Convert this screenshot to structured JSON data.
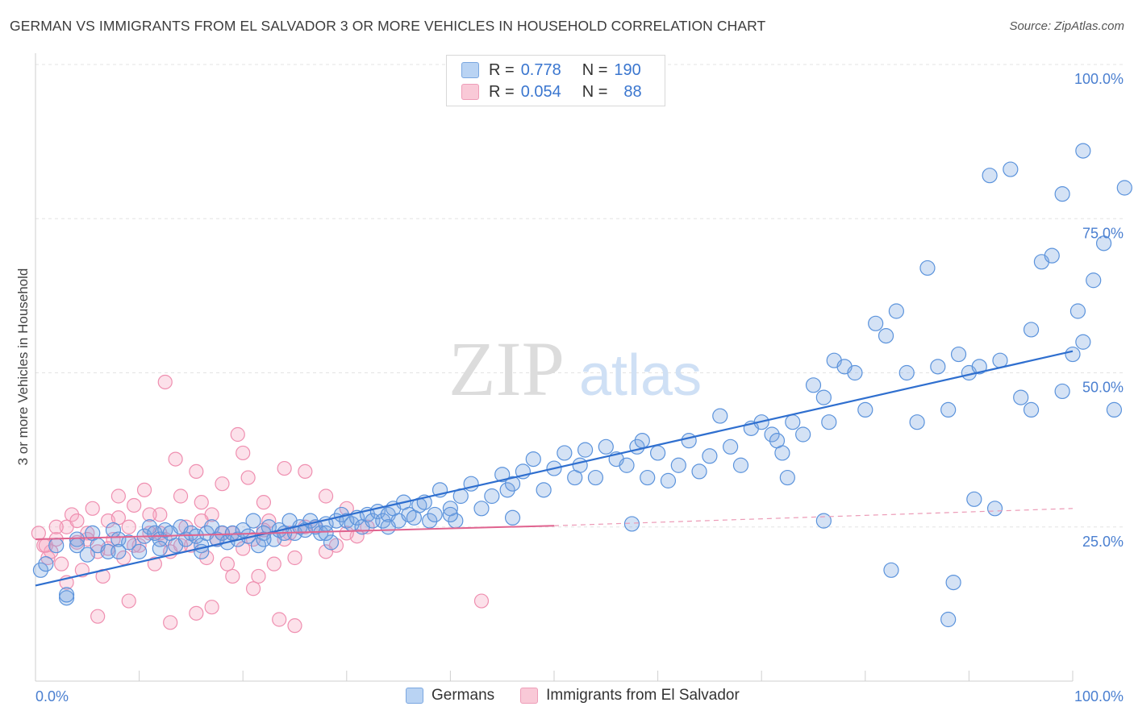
{
  "title": "GERMAN VS IMMIGRANTS FROM EL SALVADOR 3 OR MORE VEHICLES IN HOUSEHOLD CORRELATION CHART",
  "source": "Source: ZipAtlas.com",
  "watermark": {
    "zip": "ZIP",
    "atlas": "atlas"
  },
  "legend": {
    "rows": [
      {
        "r_label": "R =",
        "r_value": "0.778",
        "n_label": "N =",
        "n_value": "190",
        "color": "#a9c8f0"
      },
      {
        "r_label": "R =",
        "r_value": "0.054",
        "n_label": "N =",
        "n_value": "88",
        "color": "#f5b8cb"
      }
    ]
  },
  "bottom_legend": {
    "germans": "Germans",
    "salvador": "Immigrants from El Salvador"
  },
  "chart_data": {
    "type": "scatter",
    "ylabel": "3 or more Vehicles in Household",
    "x_tick_labels": [
      "0.0%",
      "100.0%"
    ],
    "y_tick_labels": [
      "25.0%",
      "50.0%",
      "75.0%",
      "100.0%"
    ],
    "xlim": [
      0,
      100
    ],
    "ylim": [
      0,
      100
    ],
    "grid": true,
    "colors": {
      "germans": "#5b93dc",
      "salvador": "#ef8fb0",
      "german_line": "#2f6fcf",
      "salvador_line": "#e0638f"
    },
    "series": [
      {
        "name": "Germans",
        "trend": {
          "x": [
            0,
            100
          ],
          "y": [
            15.5,
            53.5
          ]
        },
        "points": [
          [
            0.5,
            18
          ],
          [
            1,
            19
          ],
          [
            2,
            22
          ],
          [
            3,
            13.5
          ],
          [
            4,
            23
          ],
          [
            5,
            20.5
          ],
          [
            5.5,
            24
          ],
          [
            6,
            22
          ],
          [
            7,
            21
          ],
          [
            7.5,
            24.5
          ],
          [
            8,
            23
          ],
          [
            9,
            22.5
          ],
          [
            10,
            21
          ],
          [
            10.5,
            23.5
          ],
          [
            11,
            25
          ],
          [
            11.5,
            24
          ],
          [
            12,
            23
          ],
          [
            12.5,
            24.5
          ],
          [
            13,
            24
          ],
          [
            13.5,
            22
          ],
          [
            14,
            25
          ],
          [
            14.5,
            23
          ],
          [
            15,
            24
          ],
          [
            15.5,
            23.5
          ],
          [
            16,
            22
          ],
          [
            16.5,
            24
          ],
          [
            17,
            25
          ],
          [
            17.5,
            23
          ],
          [
            18,
            24
          ],
          [
            18.5,
            22.5
          ],
          [
            19,
            24
          ],
          [
            19.5,
            23
          ],
          [
            20,
            24.5
          ],
          [
            20.5,
            23.5
          ],
          [
            21,
            26
          ],
          [
            21.5,
            22
          ],
          [
            22,
            24
          ],
          [
            22.5,
            25
          ],
          [
            23,
            23
          ],
          [
            23.5,
            24.5
          ],
          [
            24,
            24
          ],
          [
            24.5,
            26
          ],
          [
            25,
            24
          ],
          [
            25.5,
            25
          ],
          [
            26,
            24.5
          ],
          [
            26.5,
            26
          ],
          [
            27,
            25
          ],
          [
            27.5,
            24
          ],
          [
            28,
            25.5
          ],
          [
            28.5,
            22.5
          ],
          [
            29,
            26
          ],
          [
            29.5,
            27
          ],
          [
            30,
            26
          ],
          [
            30.5,
            25.5
          ],
          [
            31,
            26.5
          ],
          [
            31.5,
            25
          ],
          [
            32,
            27
          ],
          [
            32.5,
            26
          ],
          [
            33,
            27.5
          ],
          [
            33.5,
            26
          ],
          [
            34,
            27
          ],
          [
            34.5,
            28
          ],
          [
            35,
            26
          ],
          [
            35.5,
            29
          ],
          [
            36,
            27
          ],
          [
            36.5,
            26.5
          ],
          [
            37,
            28.5
          ],
          [
            37.5,
            29
          ],
          [
            38,
            26
          ],
          [
            38.5,
            27
          ],
          [
            39,
            31
          ],
          [
            40,
            28
          ],
          [
            40.5,
            26
          ],
          [
            41,
            30
          ],
          [
            42,
            32
          ],
          [
            43,
            28
          ],
          [
            44,
            30
          ],
          [
            45,
            33.5
          ],
          [
            45.5,
            31
          ],
          [
            46,
            32
          ],
          [
            47,
            34
          ],
          [
            48,
            36
          ],
          [
            49,
            31
          ],
          [
            50,
            34.5
          ],
          [
            51,
            37
          ],
          [
            52,
            33
          ],
          [
            52.5,
            35
          ],
          [
            53,
            37.5
          ],
          [
            54,
            33
          ],
          [
            55,
            38
          ],
          [
            56,
            36
          ],
          [
            57,
            35
          ],
          [
            58,
            38
          ],
          [
            58.5,
            39
          ],
          [
            59,
            33
          ],
          [
            60,
            37
          ],
          [
            61,
            32.5
          ],
          [
            62,
            35
          ],
          [
            63,
            39
          ],
          [
            64,
            34
          ],
          [
            65,
            36.5
          ],
          [
            66,
            43
          ],
          [
            67,
            38
          ],
          [
            68,
            35
          ],
          [
            69,
            41
          ],
          [
            70,
            42
          ],
          [
            71,
            40
          ],
          [
            71.5,
            39
          ],
          [
            72,
            37
          ],
          [
            73,
            42
          ],
          [
            74,
            40
          ],
          [
            75,
            48
          ],
          [
            76,
            46
          ],
          [
            76.5,
            42
          ],
          [
            77,
            52
          ],
          [
            78,
            51
          ],
          [
            79,
            50
          ],
          [
            80,
            44
          ],
          [
            81,
            58
          ],
          [
            82,
            56
          ],
          [
            83,
            60
          ],
          [
            84,
            50
          ],
          [
            85,
            42
          ],
          [
            86,
            67
          ],
          [
            87,
            51
          ],
          [
            88,
            44
          ],
          [
            89,
            53
          ],
          [
            90,
            50
          ],
          [
            91,
            51
          ],
          [
            92,
            82
          ],
          [
            93,
            52
          ],
          [
            94,
            83
          ],
          [
            95,
            46
          ],
          [
            96,
            57
          ],
          [
            97,
            68
          ],
          [
            98,
            69
          ],
          [
            99,
            47
          ],
          [
            100,
            53
          ],
          [
            100.5,
            60
          ],
          [
            101,
            55
          ],
          [
            102,
            65
          ],
          [
            103,
            71
          ],
          [
            104,
            44
          ],
          [
            105,
            80
          ],
          [
            82.5,
            18
          ],
          [
            88,
            10
          ],
          [
            90.5,
            29.5
          ],
          [
            92.5,
            28
          ],
          [
            72.5,
            33
          ],
          [
            76,
            26
          ],
          [
            57.5,
            25.5
          ],
          [
            46,
            26.5
          ],
          [
            40,
            27
          ],
          [
            34,
            25
          ],
          [
            28,
            24
          ],
          [
            22,
            23
          ],
          [
            16,
            21
          ],
          [
            12,
            21.5
          ],
          [
            8,
            21
          ],
          [
            4,
            22
          ],
          [
            3,
            14
          ],
          [
            88.5,
            16
          ],
          [
            96,
            44
          ],
          [
            99,
            79
          ],
          [
            101,
            86
          ]
        ]
      },
      {
        "name": "Immigrants from El Salvador",
        "trend": {
          "x": [
            0,
            50
          ],
          "y": [
            23,
            25.2
          ]
        },
        "dashed": {
          "x": [
            50,
            100
          ],
          "y": [
            25.2,
            28
          ]
        },
        "points": [
          [
            0.3,
            24
          ],
          [
            0.8,
            22
          ],
          [
            1.2,
            20
          ],
          [
            1.5,
            21
          ],
          [
            2,
            23
          ],
          [
            2.5,
            19
          ],
          [
            3,
            25
          ],
          [
            3.5,
            27
          ],
          [
            4,
            22.5
          ],
          [
            4.5,
            18
          ],
          [
            5,
            24
          ],
          [
            5.5,
            28
          ],
          [
            6,
            21
          ],
          [
            6.5,
            17
          ],
          [
            7,
            26
          ],
          [
            7.5,
            23
          ],
          [
            8,
            30
          ],
          [
            8.5,
            20
          ],
          [
            9,
            25
          ],
          [
            9.5,
            28.5
          ],
          [
            10,
            22
          ],
          [
            10.5,
            31
          ],
          [
            11,
            24
          ],
          [
            11.5,
            19
          ],
          [
            12,
            27
          ],
          [
            12.5,
            23
          ],
          [
            13,
            21
          ],
          [
            13.5,
            36
          ],
          [
            14,
            30
          ],
          [
            14.5,
            25
          ],
          [
            15,
            22
          ],
          [
            15.5,
            34
          ],
          [
            16,
            29
          ],
          [
            16.5,
            20
          ],
          [
            17,
            27
          ],
          [
            17.5,
            23
          ],
          [
            18,
            32
          ],
          [
            18.5,
            19
          ],
          [
            19,
            24
          ],
          [
            19.5,
            40
          ],
          [
            20,
            37
          ],
          [
            20.5,
            33
          ],
          [
            21,
            23
          ],
          [
            21.5,
            17
          ],
          [
            22,
            29
          ],
          [
            22.5,
            26
          ],
          [
            23,
            19
          ],
          [
            23.5,
            10
          ],
          [
            24,
            34.5
          ],
          [
            24.5,
            24
          ],
          [
            25,
            20
          ],
          [
            26,
            34
          ],
          [
            27,
            25
          ],
          [
            28,
            30
          ],
          [
            29,
            22
          ],
          [
            30,
            28
          ],
          [
            31,
            23.5
          ],
          [
            32,
            25
          ],
          [
            12.5,
            48.5
          ],
          [
            15.5,
            11
          ],
          [
            17,
            12
          ],
          [
            19,
            17
          ],
          [
            21,
            15
          ],
          [
            25,
            9
          ],
          [
            13,
            9.5
          ],
          [
            9,
            13
          ],
          [
            6,
            10.5
          ],
          [
            3,
            16
          ],
          [
            43,
            13
          ],
          [
            1,
            22
          ],
          [
            2,
            25
          ],
          [
            4,
            26
          ],
          [
            5,
            23
          ],
          [
            7,
            21.5
          ],
          [
            8,
            26.5
          ],
          [
            9.5,
            22
          ],
          [
            11,
            27
          ],
          [
            12,
            24
          ],
          [
            14,
            22
          ],
          [
            16,
            26
          ],
          [
            18,
            24
          ],
          [
            20,
            21.5
          ],
          [
            22,
            24.5
          ],
          [
            24,
            23
          ],
          [
            26,
            25
          ],
          [
            28,
            21
          ],
          [
            30,
            24
          ]
        ]
      }
    ]
  }
}
